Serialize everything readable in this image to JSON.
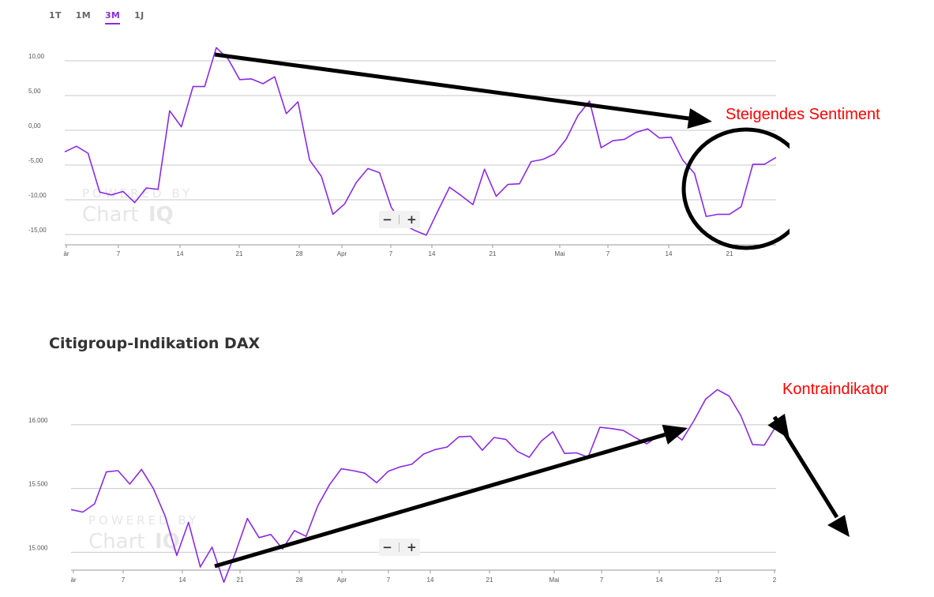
{
  "tabs": [
    "1T",
    "1M",
    "3M",
    "1J"
  ],
  "active_tab": "3M",
  "watermark": {
    "line1": "POWERED BY",
    "line2": "Chart",
    "line3": "IQ"
  },
  "zoom": {
    "minus": "−",
    "plus": "+"
  },
  "x_tick_labels": [
    "är",
    "7",
    "14",
    "21",
    "28",
    "Apr",
    "7",
    "14",
    "21",
    "Mai",
    "7",
    "14",
    "21",
    "2"
  ],
  "accent_color": "#8a2be2",
  "annotation_color": "#ff0000",
  "annotations": {
    "top": "Steigendes Sentiment",
    "bottom": "Kontraindikator"
  },
  "chart_data": [
    {
      "type": "line",
      "title": "",
      "ylim": [
        -15.8,
        12.5
      ],
      "y_ticks": [
        10,
        5,
        0,
        -5,
        -10,
        -15
      ],
      "y_tick_labels": [
        "10,00",
        "5,00",
        "0,00",
        "-5,00",
        "-10,00",
        "-15,00"
      ],
      "x_tick_labels": [
        "är",
        "7",
        "14",
        "21",
        "28",
        "Apr",
        "7",
        "14",
        "21",
        "Mai",
        "7",
        "14",
        "21"
      ],
      "series": [
        {
          "values": [
            -3.1,
            -2.3,
            -3.3,
            -8.9,
            -9.3,
            -8.8,
            -10.4,
            -8.3,
            -8.5,
            2.8,
            0.5,
            6.3,
            6.3,
            11.9,
            10.3,
            7.3,
            7.4,
            6.7,
            7.7,
            2.4,
            4.1,
            -4.3,
            -6.6,
            -12.1,
            -10.6,
            -7.5,
            -5.5,
            -6.1,
            -11.1,
            -13.5,
            -14.4,
            -15.1,
            -11.6,
            -8.2,
            -9.4,
            -10.7,
            -5.6,
            -9.5,
            -7.8,
            -7.7,
            -4.5,
            -4.2,
            -3.4,
            -1.3,
            2.1,
            4.2,
            -2.5,
            -1.5,
            -1.3,
            -0.3,
            0.2,
            -1.1,
            -1.0,
            -4.3,
            -6.2,
            -12.4,
            -12.1,
            -12.1,
            -11.0,
            -4.9,
            -4.9,
            -3.9
          ]
        }
      ]
    },
    {
      "type": "line",
      "title": "Citigroup-Indikation DAX",
      "ylim": [
        14860,
        16420
      ],
      "y_ticks": [
        16000,
        15500,
        15000
      ],
      "y_tick_labels": [
        "16.000",
        "15.500",
        "15.000"
      ],
      "x_tick_labels": [
        "är",
        "7",
        "14",
        "21",
        "28",
        "Apr",
        "7",
        "14",
        "21",
        "Mai",
        "7",
        "14",
        "21",
        "2"
      ],
      "series": [
        {
          "values": [
            15335,
            15315,
            15380,
            15630,
            15640,
            15535,
            15650,
            15500,
            15285,
            14975,
            15235,
            14885,
            15040,
            14765,
            15000,
            15265,
            15115,
            15140,
            15025,
            15170,
            15125,
            15365,
            15530,
            15655,
            15640,
            15620,
            15545,
            15635,
            15670,
            15690,
            15770,
            15805,
            15825,
            15905,
            15910,
            15800,
            15900,
            15885,
            15790,
            15745,
            15870,
            15945,
            15775,
            15780,
            15745,
            15980,
            15970,
            15955,
            15900,
            15850,
            15915,
            15950,
            15880,
            16030,
            16200,
            16275,
            16225,
            16070,
            15845,
            15840,
            15990
          ]
        }
      ]
    }
  ]
}
